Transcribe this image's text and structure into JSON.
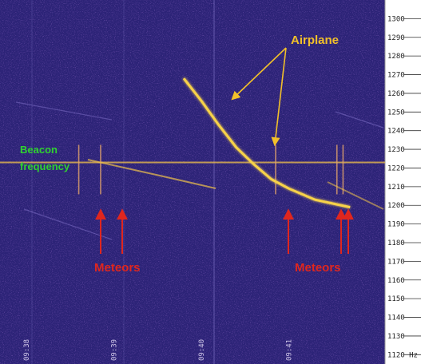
{
  "chart_data": {
    "type": "heatmap",
    "title": "",
    "ylabel": "",
    "y_unit_label": "Hz",
    "y_ticks": [
      1300,
      1290,
      1280,
      1270,
      1260,
      1250,
      1240,
      1230,
      1220,
      1210,
      1200,
      1190,
      1180,
      1170,
      1160,
      1150,
      1140,
      1130,
      1120
    ],
    "ylim": [
      1115,
      1310
    ],
    "x_ticks": [
      "09:38",
      "09:39",
      "09:40",
      "09:41"
    ],
    "beacon_frequency": 1223,
    "airplane_trace": [
      {
        "time": "09:39.8",
        "freq": 1268
      },
      {
        "time": "09:40.0",
        "freq": 1256
      },
      {
        "time": "09:40.2",
        "freq": 1243
      },
      {
        "time": "09:40.4",
        "freq": 1231
      },
      {
        "time": "09:40.6",
        "freq": 1222
      },
      {
        "time": "09:40.8",
        "freq": 1214
      },
      {
        "time": "09:41.0",
        "freq": 1209
      },
      {
        "time": "09:41.3",
        "freq": 1203
      },
      {
        "time": "09:41.7",
        "freq": 1199
      }
    ],
    "meteor_echoes": [
      "09:38.6",
      "09:38.85",
      "09:40.85",
      "09:41.55",
      "09:41.62"
    ],
    "annotations": {
      "airplane": "Airplane",
      "beacon": [
        "Beacon",
        "frequency"
      ],
      "meteors_left": "Meteors",
      "meteors_right": "Meteors"
    },
    "colors": {
      "background": "#2c2377",
      "trace": "#f7d24a",
      "airplane_label": "#f2c02a",
      "beacon_label": "#2fd32f",
      "meteor_label": "#e0261e"
    }
  }
}
